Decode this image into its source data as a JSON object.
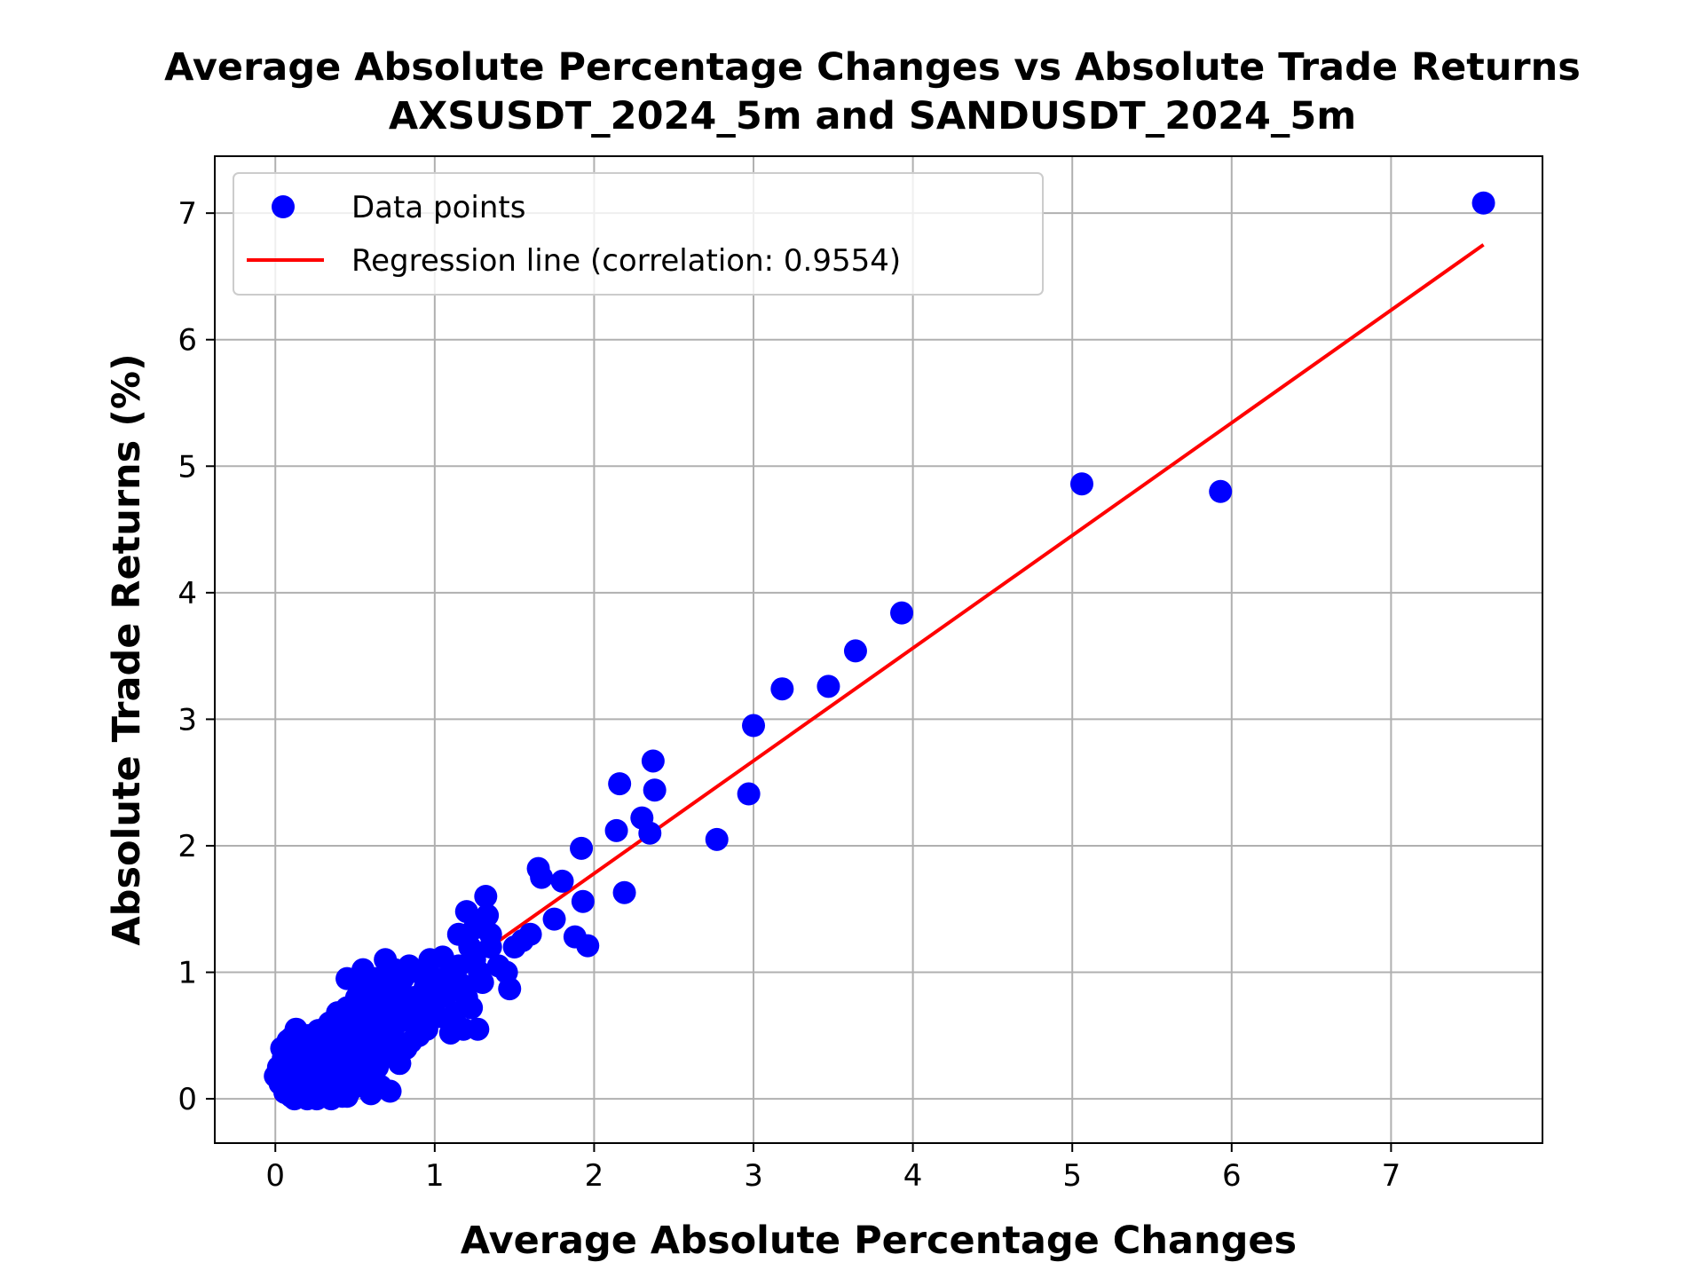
{
  "chart_data": {
    "type": "scatter",
    "title": "Average Absolute Percentage Changes vs Absolute Trade Returns",
    "subtitle": "AXSUSDT_2024_5m and SANDUSDT_2024_5m",
    "xlabel": "Average Absolute Percentage Changes",
    "ylabel": "Absolute Trade Returns (%)",
    "xlim": [
      -0.38,
      7.95
    ],
    "ylim": [
      -0.35,
      7.45
    ],
    "x_ticks": [
      "0",
      "1",
      "2",
      "3",
      "4",
      "5",
      "6",
      "7"
    ],
    "y_ticks": [
      "0",
      "1",
      "2",
      "3",
      "4",
      "5",
      "6",
      "7"
    ],
    "grid": true,
    "legend_position": "upper-left",
    "colors": {
      "points": "#0000ff",
      "regression": "#ff0000",
      "grid": "#b0b0b0",
      "legend_border": "#cccccc"
    },
    "series": [
      {
        "name": "Data points",
        "kind": "scatter",
        "points": [
          [
            0.0,
            0.18
          ],
          [
            0.02,
            0.25
          ],
          [
            0.03,
            0.12
          ],
          [
            0.05,
            0.32
          ],
          [
            0.06,
            0.05
          ],
          [
            0.07,
            0.4
          ],
          [
            0.08,
            0.2
          ],
          [
            0.09,
            0.28
          ],
          [
            0.1,
            0.02
          ],
          [
            0.1,
            0.48
          ],
          [
            0.11,
            0.15
          ],
          [
            0.12,
            0.36
          ],
          [
            0.13,
            0.55
          ],
          [
            0.14,
            0.08
          ],
          [
            0.15,
            0.24
          ],
          [
            0.16,
            0.44
          ],
          [
            0.17,
            0.3
          ],
          [
            0.18,
            0.12
          ],
          [
            0.19,
            0.02
          ],
          [
            0.2,
            0.38
          ],
          [
            0.21,
            0.5
          ],
          [
            0.22,
            0.22
          ],
          [
            0.23,
            0.06
          ],
          [
            0.24,
            0.42
          ],
          [
            0.25,
            0.3
          ],
          [
            0.26,
            0.16
          ],
          [
            0.27,
            0.54
          ],
          [
            0.28,
            0.35
          ],
          [
            0.29,
            0.02
          ],
          [
            0.3,
            0.25
          ],
          [
            0.31,
            0.46
          ],
          [
            0.32,
            0.12
          ],
          [
            0.33,
            0.38
          ],
          [
            0.34,
            0.6
          ],
          [
            0.35,
            0.2
          ],
          [
            0.36,
            0.05
          ],
          [
            0.37,
            0.5
          ],
          [
            0.38,
            0.32
          ],
          [
            0.39,
            0.68
          ],
          [
            0.4,
            0.15
          ],
          [
            0.41,
            0.42
          ],
          [
            0.42,
            0.02
          ],
          [
            0.43,
            0.55
          ],
          [
            0.44,
            0.28
          ],
          [
            0.45,
            0.72
          ],
          [
            0.46,
            0.18
          ],
          [
            0.47,
            0.45
          ],
          [
            0.48,
            0.08
          ],
          [
            0.49,
            0.62
          ],
          [
            0.5,
            0.35
          ],
          [
            0.51,
            0.8
          ],
          [
            0.52,
            0.22
          ],
          [
            0.53,
            0.5
          ],
          [
            0.54,
            0.12
          ],
          [
            0.55,
            0.7
          ],
          [
            0.56,
            0.4
          ],
          [
            0.57,
            0.88
          ],
          [
            0.58,
            0.3
          ],
          [
            0.59,
            0.58
          ],
          [
            0.6,
            0.16
          ],
          [
            0.61,
            0.75
          ],
          [
            0.62,
            0.46
          ],
          [
            0.63,
            0.95
          ],
          [
            0.64,
            0.25
          ],
          [
            0.65,
            0.62
          ],
          [
            0.66,
            0.1
          ],
          [
            0.67,
            0.82
          ],
          [
            0.68,
            0.5
          ],
          [
            0.69,
            1.1
          ],
          [
            0.7,
            0.35
          ],
          [
            0.71,
            0.68
          ],
          [
            0.72,
            0.06
          ],
          [
            0.73,
            0.9
          ],
          [
            0.74,
            0.55
          ],
          [
            0.75,
            1.02
          ],
          [
            0.76,
            0.4
          ],
          [
            0.77,
            0.75
          ],
          [
            0.78,
            0.28
          ],
          [
            0.8,
            0.95
          ],
          [
            0.82,
            0.62
          ],
          [
            0.84,
            1.05
          ],
          [
            0.85,
            0.45
          ],
          [
            0.87,
            0.8
          ],
          [
            0.88,
            0.6
          ],
          [
            0.9,
            1.0
          ],
          [
            0.92,
            0.7
          ],
          [
            0.94,
            0.88
          ],
          [
            0.95,
            0.55
          ],
          [
            0.97,
            1.1
          ],
          [
            0.99,
            0.78
          ],
          [
            1.0,
            0.95
          ],
          [
            1.02,
            0.65
          ],
          [
            1.05,
            1.12
          ],
          [
            1.07,
            0.82
          ],
          [
            1.1,
            1.0
          ],
          [
            1.1,
            0.52
          ],
          [
            1.13,
            0.68
          ],
          [
            1.15,
            1.3
          ],
          [
            1.17,
            0.9
          ],
          [
            1.18,
            0.55
          ],
          [
            1.2,
            1.48
          ],
          [
            1.22,
            1.2
          ],
          [
            1.23,
            0.72
          ],
          [
            1.25,
            1.35
          ],
          [
            1.27,
            0.55
          ],
          [
            1.28,
            1.0
          ],
          [
            1.3,
            0.92
          ],
          [
            1.32,
            1.6
          ],
          [
            1.33,
            1.45
          ],
          [
            1.35,
            1.2
          ],
          [
            1.4,
            1.05
          ],
          [
            1.45,
            1.0
          ],
          [
            1.47,
            0.87
          ],
          [
            1.5,
            1.2
          ],
          [
            1.55,
            1.25
          ],
          [
            1.6,
            1.3
          ],
          [
            1.65,
            1.82
          ],
          [
            1.67,
            1.75
          ],
          [
            1.75,
            1.42
          ],
          [
            1.8,
            1.72
          ],
          [
            1.88,
            1.28
          ],
          [
            1.92,
            1.98
          ],
          [
            1.93,
            1.56
          ],
          [
            1.96,
            1.21
          ],
          [
            2.14,
            2.12
          ],
          [
            2.16,
            2.49
          ],
          [
            2.19,
            1.63
          ],
          [
            2.3,
            2.22
          ],
          [
            2.35,
            2.1
          ],
          [
            2.37,
            2.67
          ],
          [
            2.38,
            2.44
          ],
          [
            2.77,
            2.05
          ],
          [
            2.97,
            2.41
          ],
          [
            3.0,
            2.95
          ],
          [
            3.18,
            3.24
          ],
          [
            3.47,
            3.26
          ],
          [
            3.64,
            3.54
          ],
          [
            3.93,
            3.84
          ],
          [
            5.06,
            4.86
          ],
          [
            5.93,
            4.8
          ],
          [
            7.58,
            7.08
          ],
          [
            0.04,
            0.4
          ],
          [
            0.06,
            0.3
          ],
          [
            0.08,
            0.46
          ],
          [
            0.12,
            0.0
          ],
          [
            0.15,
            0.52
          ],
          [
            0.18,
            0.35
          ],
          [
            0.2,
            0.0
          ],
          [
            0.22,
            0.42
          ],
          [
            0.26,
            0.0
          ],
          [
            0.3,
            0.52
          ],
          [
            0.32,
            0.32
          ],
          [
            0.35,
            0.0
          ],
          [
            0.38,
            0.46
          ],
          [
            0.42,
            0.62
          ],
          [
            0.45,
            0.02
          ],
          [
            0.48,
            0.36
          ],
          [
            0.52,
            0.65
          ],
          [
            0.55,
            0.22
          ],
          [
            0.58,
            0.78
          ],
          [
            0.6,
            0.04
          ],
          [
            0.62,
            0.85
          ],
          [
            0.65,
            0.3
          ],
          [
            0.68,
            0.7
          ],
          [
            0.72,
            0.45
          ],
          [
            0.75,
            0.6
          ],
          [
            0.78,
            0.85
          ],
          [
            0.82,
            0.4
          ],
          [
            0.86,
            0.72
          ],
          [
            0.9,
            0.5
          ],
          [
            0.45,
            0.95
          ],
          [
            0.55,
            1.02
          ],
          [
            0.78,
            0.28
          ],
          [
            1.03,
            0.8
          ],
          [
            1.12,
            0.62
          ],
          [
            1.25,
            1.1
          ],
          [
            1.2,
            0.8
          ],
          [
            1.35,
            1.3
          ],
          [
            1.15,
            1.05
          ],
          [
            1.08,
            0.95
          ]
        ]
      },
      {
        "name": "Regression line (correlation: 0.9554)",
        "kind": "line",
        "points": [
          [
            0.0,
            0.0
          ],
          [
            7.58,
            6.75
          ]
        ]
      }
    ]
  }
}
